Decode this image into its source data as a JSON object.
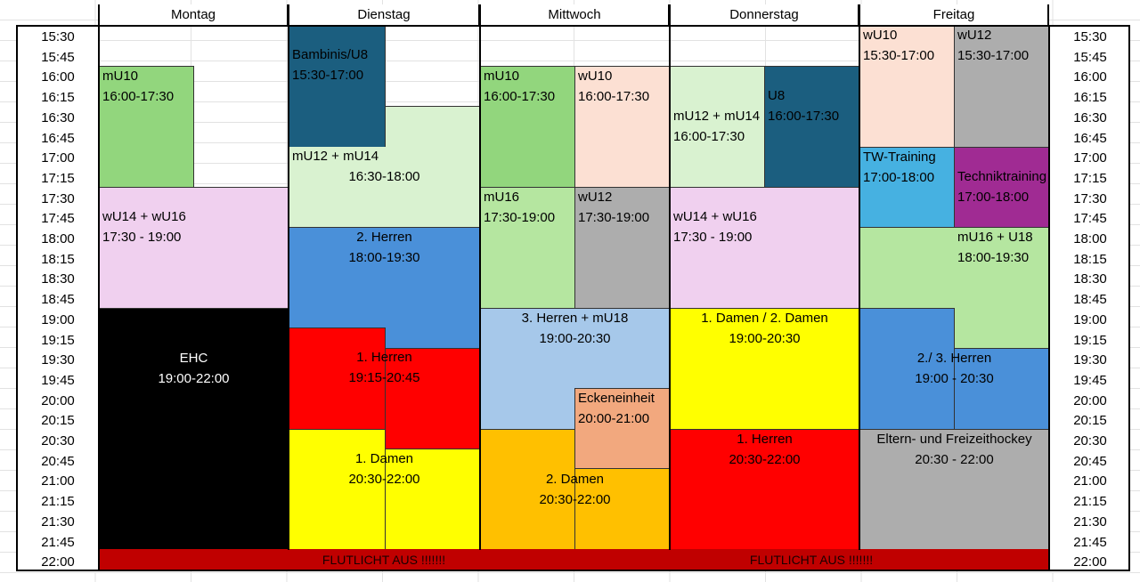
{
  "days": [
    "Montag",
    "Dienstag",
    "Mittwoch",
    "Donnerstag",
    "Freitag"
  ],
  "times": [
    "15:30",
    "15:45",
    "16:00",
    "16:15",
    "16:30",
    "16:45",
    "17:00",
    "17:15",
    "17:30",
    "17:45",
    "18:00",
    "18:15",
    "18:30",
    "18:45",
    "19:00",
    "19:15",
    "19:30",
    "19:45",
    "20:00",
    "20:15",
    "20:30",
    "20:45",
    "21:00",
    "21:15",
    "21:30",
    "21:45",
    "22:00"
  ],
  "blocks": {
    "mo_mu10": {
      "name": "mU10",
      "time": "16:00-17:30",
      "color": "#92d67d"
    },
    "mo_wu14": {
      "name": "wU14 + wU16",
      "time": "17:30 - 19:00",
      "color": "#f0d0ef"
    },
    "mo_ehc": {
      "name": "EHC",
      "time": "19:00-22:00",
      "color": "#000000"
    },
    "di_bambinis": {
      "name": "Bambinis/U8",
      "time": "15:30-17:00",
      "color": "#1b5e7f"
    },
    "di_mu12": {
      "name": "mU12 + mU14",
      "time": "16:30-18:00",
      "color": "#d9f2d0"
    },
    "di_herren2": {
      "name": "2. Herren",
      "time": "18:00-19:30",
      "color": "#4a90d9"
    },
    "di_herren1": {
      "name": "1. Herren",
      "time": "19:15-20:45",
      "color": "#ff0000"
    },
    "di_damen1": {
      "name": "1. Damen",
      "time": "20:30-22:00",
      "color": "#ffff00"
    },
    "mi_mu10": {
      "name": "mU10",
      "time": "16:00-17:30",
      "color": "#92d67d"
    },
    "mi_wu10": {
      "name": "wU10",
      "time": "16:00-17:30",
      "color": "#fce0d3"
    },
    "mi_mu16": {
      "name": "mU16",
      "time": "17:30-19:00",
      "color": "#b5e6a0"
    },
    "mi_wu12": {
      "name": "wU12",
      "time": "17:30-19:00",
      "color": "#adadad"
    },
    "mi_herren3": {
      "name": "3. Herren + mU18",
      "time": "19:00-20:30",
      "color": "#a6c8ea"
    },
    "mi_ecke": {
      "name": "Eckeneinheit",
      "time": "20:00-21:00",
      "color": "#f2a87e"
    },
    "mi_damen2": {
      "name": "2. Damen",
      "time": "20:30-22:00",
      "color": "#ffc000"
    },
    "do_mu12": {
      "name": "mU12 + mU14",
      "time": "16:00-17:30",
      "color": "#d9f2d0"
    },
    "do_u8": {
      "name": "U8",
      "time": "16:00-17:30",
      "color": "#1b5e7f"
    },
    "do_wu14": {
      "name": "wU14 + wU16",
      "time": "17:30 - 19:00",
      "color": "#f0d0ef"
    },
    "do_damen": {
      "name": "1. Damen / 2. Damen",
      "time": "19:00-20:30",
      "color": "#ffff00"
    },
    "do_herren1": {
      "name": "1. Herren",
      "time": "20:30-22:00",
      "color": "#ff0000"
    },
    "fr_wu10": {
      "name": "wU10",
      "time": "15:30-17:00",
      "color": "#fce0d3"
    },
    "fr_wu12": {
      "name": "wU12",
      "time": "15:30-17:00",
      "color": "#adadad"
    },
    "fr_tw": {
      "name": "TW-Training",
      "time": "17:00-18:00",
      "color": "#46b1e1"
    },
    "fr_technik": {
      "name": "Techniktraining",
      "time": "17:00-18:00",
      "color": "#a02b93"
    },
    "fr_mu16": {
      "name": "mU16 + U18",
      "time": "18:00-19:30",
      "color": "#b5e6a0"
    },
    "fr_herren": {
      "name": "2./ 3. Herren",
      "time": "19:00 - 20:30",
      "color": "#4a90d9"
    },
    "fr_eltern": {
      "name": "Eltern- und Freizeithockey",
      "time": "20:30 - 22:00",
      "color": "#adadad"
    }
  },
  "floodlight": {
    "left": "FLUTLICHT AUS !!!!!!!",
    "right": "FLUTLICHT AUS !!!!!!!",
    "color": "#c00000"
  }
}
